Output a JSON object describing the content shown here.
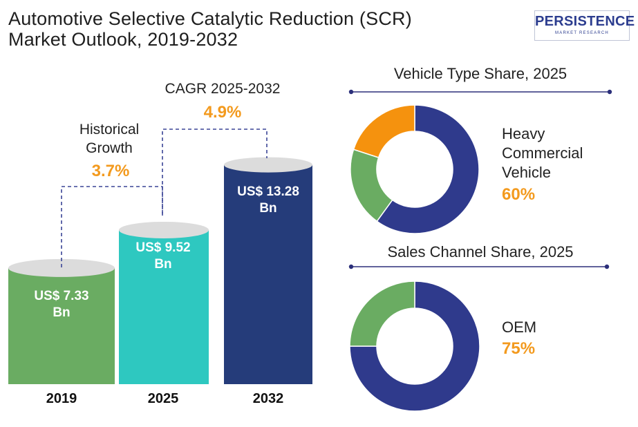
{
  "title": {
    "line1": "Automotive Selective Catalytic Reduction (SCR)",
    "line2": "Market Outlook, 2019-2032"
  },
  "logo": {
    "name": "PERSISTENCE",
    "tagline": "MARKET RESEARCH"
  },
  "annotations": {
    "historical_label_line1": "Historical",
    "historical_label_line2": "Growth",
    "historical_value": "3.7%",
    "cagr_label": "CAGR 2025-2032",
    "cagr_value": "4.9%"
  },
  "bar_labels": {
    "b2019_line1": "US$ 7.33",
    "b2019_line2": "Bn",
    "b2025_line1": "US$ 9.52",
    "b2025_line2": "Bn",
    "b2032_line1": "US$ 13.28",
    "b2032_line2": "Bn"
  },
  "donut_labels": {
    "vehicle_title": "Vehicle Type Share, 2025",
    "vehicle_seg_line1": "Heavy",
    "vehicle_seg_line2": "Commercial",
    "vehicle_seg_line3": "Vehicle",
    "vehicle_seg_value": "60%",
    "sales_title": "Sales Channel Share, 2025",
    "sales_seg_name": "OEM",
    "sales_seg_value": "75%"
  },
  "chart_data": [
    {
      "type": "bar",
      "categories": [
        "2019",
        "2025",
        "2032"
      ],
      "values": [
        7.33,
        9.52,
        13.28
      ],
      "unit": "US$ Bn",
      "colors": [
        "#6aac62",
        "#2ec8c0",
        "#253c7a"
      ]
    },
    {
      "type": "pie",
      "title": "Vehicle Type Share, 2025",
      "labels": [
        "Heavy Commercial Vehicle",
        "",
        ""
      ],
      "values": [
        60,
        20,
        20
      ],
      "colors": [
        "#2f3a8c",
        "#6aac62",
        "#f5920e"
      ]
    },
    {
      "type": "pie",
      "title": "Sales Channel Share, 2025",
      "labels": [
        "OEM",
        ""
      ],
      "values": [
        75,
        25
      ],
      "colors": [
        "#2f3a8c",
        "#6aac62"
      ]
    }
  ]
}
